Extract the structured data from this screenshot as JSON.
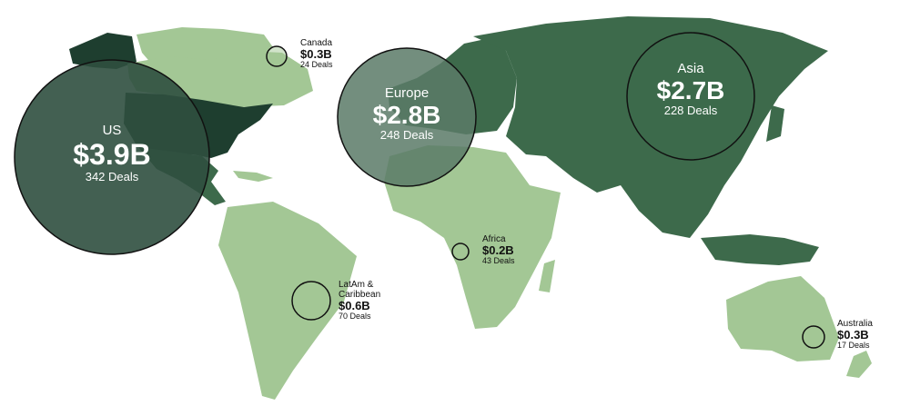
{
  "colors": {
    "light_land": "#a3c795",
    "dark_land": "#3d6a4b",
    "darkest_land": "#1e3e2f",
    "bubble_fill": "#2f4f3f",
    "bubble_stroke": "#111111",
    "text_dark": "#111111",
    "text_light": "#ffffff"
  },
  "regions": [
    {
      "key": "us",
      "name": "US",
      "value": "$3.9B",
      "deals": "342 Deals",
      "amount": 3.9,
      "count": 342
    },
    {
      "key": "europe",
      "name": "Europe",
      "value": "$2.8B",
      "deals": "248 Deals",
      "amount": 2.8,
      "count": 248
    },
    {
      "key": "asia",
      "name": "Asia",
      "value": "$2.7B",
      "deals": "228 Deals",
      "amount": 2.7,
      "count": 228
    },
    {
      "key": "latam",
      "name": "LatAm &\nCaribbean",
      "value": "$0.6B",
      "deals": "70 Deals",
      "amount": 0.6,
      "count": 70
    },
    {
      "key": "canada",
      "name": "Canada",
      "value": "$0.3B",
      "deals": "24 Deals",
      "amount": 0.3,
      "count": 24
    },
    {
      "key": "australia",
      "name": "Australia",
      "value": "$0.3B",
      "deals": "17 Deals",
      "amount": 0.3,
      "count": 17
    },
    {
      "key": "africa",
      "name": "Africa",
      "value": "$0.2B",
      "deals": "43 Deals",
      "amount": 0.2,
      "count": 43
    }
  ]
}
